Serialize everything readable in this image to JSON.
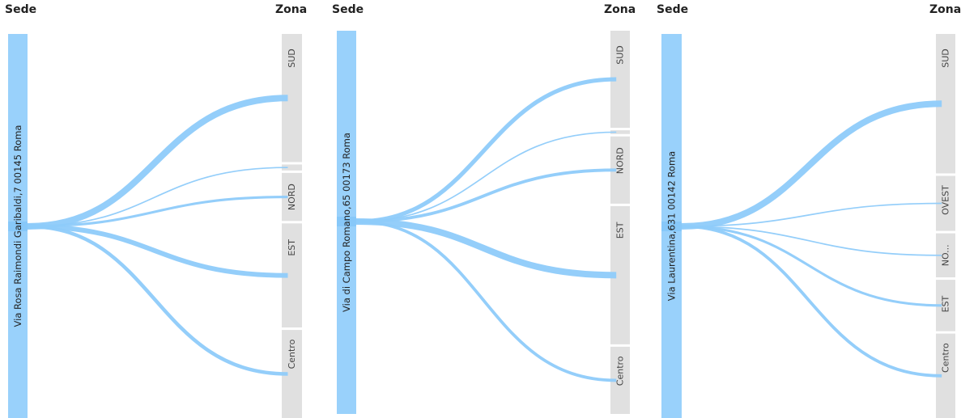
{
  "colors": {
    "source_bar": "#99d1fb",
    "link": "#8ecbfa",
    "link_strong": "#7cc2f8",
    "target_bar": "#e0e0e0",
    "text": "#222222",
    "target_text": "#444444"
  },
  "chart_data": [
    {
      "type": "sankey",
      "source_header": "Sede",
      "target_header": "Zona",
      "source": "Via Rosa Raimondi Garibaldi,7 00145 Roma",
      "targets": [
        {
          "name": "SUD",
          "value": 32
        },
        {
          "name": "",
          "value": 1.5
        },
        {
          "name": "NORD",
          "value": 12
        },
        {
          "name": "EST",
          "value": 26
        },
        {
          "name": "Centro",
          "value": 22
        }
      ],
      "links": [
        {
          "source": "Via Rosa Raimondi Garibaldi,7 00145 Roma",
          "target": "SUD",
          "value": 10
        },
        {
          "source": "Via Rosa Raimondi Garibaldi,7 00145 Roma",
          "target": "",
          "value": 1
        },
        {
          "source": "Via Rosa Raimondi Garibaldi,7 00145 Roma",
          "target": "NORD",
          "value": 3
        },
        {
          "source": "Via Rosa Raimondi Garibaldi,7 00145 Roma",
          "target": "EST",
          "value": 7
        },
        {
          "source": "Via Rosa Raimondi Garibaldi,7 00145 Roma",
          "target": "Centro",
          "value": 5
        }
      ]
    },
    {
      "type": "sankey",
      "source_header": "Sede",
      "target_header": "Zona",
      "source": "Via di Campo Romano,65 00173 Roma",
      "targets": [
        {
          "name": "SUD",
          "value": 26
        },
        {
          "name": "",
          "value": 1
        },
        {
          "name": "NORD",
          "value": 18
        },
        {
          "name": "EST",
          "value": 37
        },
        {
          "name": "Centro",
          "value": 18
        }
      ],
      "links": [
        {
          "source": "Via di Campo Romano,65 00173 Roma",
          "target": "SUD",
          "value": 6
        },
        {
          "source": "Via di Campo Romano,65 00173 Roma",
          "target": "",
          "value": 1
        },
        {
          "source": "Via di Campo Romano,65 00173 Roma",
          "target": "NORD",
          "value": 4
        },
        {
          "source": "Via di Campo Romano,65 00173 Roma",
          "target": "EST",
          "value": 10
        },
        {
          "source": "Via di Campo Romano,65 00173 Roma",
          "target": "Centro",
          "value": 4
        }
      ]
    },
    {
      "type": "sankey",
      "source_header": "Sede",
      "target_header": "Zona",
      "source": "Via Laurentina,631 00142 Roma",
      "targets": [
        {
          "name": "SUD",
          "value": 38
        },
        {
          "name": "OVEST",
          "value": 15
        },
        {
          "name": "NO...",
          "value": 12
        },
        {
          "name": "EST",
          "value": 14
        },
        {
          "name": "Centro",
          "value": 23
        }
      ],
      "links": [
        {
          "source": "Via Laurentina,631 00142 Roma",
          "target": "SUD",
          "value": 10
        },
        {
          "source": "Via Laurentina,631 00142 Roma",
          "target": "OVEST",
          "value": 1
        },
        {
          "source": "Via Laurentina,631 00142 Roma",
          "target": "NO...",
          "value": 1
        },
        {
          "source": "Via Laurentina,631 00142 Roma",
          "target": "EST",
          "value": 3
        },
        {
          "source": "Via Laurentina,631 00142 Roma",
          "target": "Centro",
          "value": 4
        }
      ]
    }
  ]
}
